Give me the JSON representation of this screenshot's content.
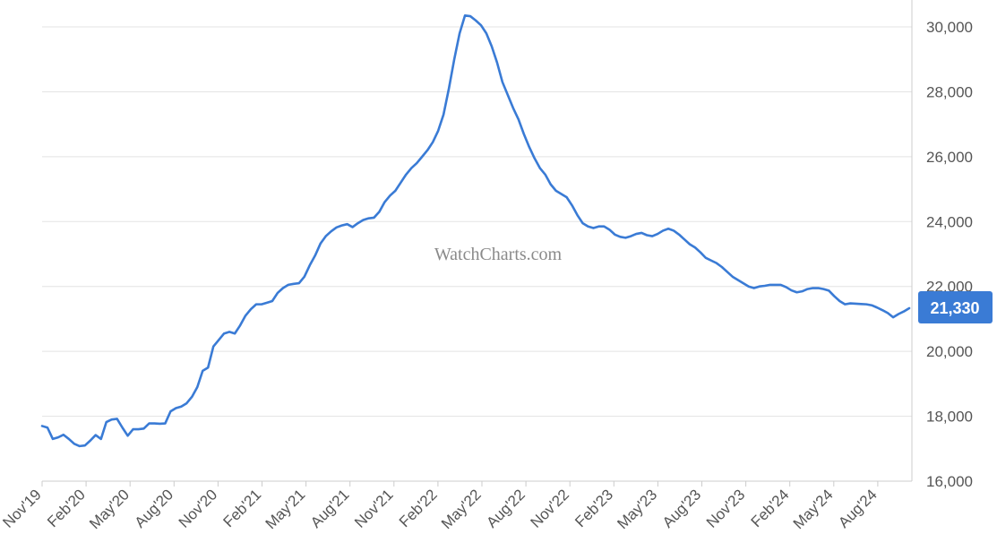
{
  "watermark": "WatchCharts.com",
  "chart_data": {
    "type": "line",
    "x_ticks": [
      "Nov'19",
      "Feb'20",
      "May'20",
      "Aug'20",
      "Nov'20",
      "Feb'21",
      "May'21",
      "Aug'21",
      "Nov'21",
      "Feb'22",
      "May'22",
      "Aug'22",
      "Nov'22",
      "Feb'23",
      "May'23",
      "Aug'23",
      "Nov'23",
      "Feb'24",
      "May'24",
      "Aug'24"
    ],
    "y_ticks": [
      "16,000",
      "18,000",
      "20,000",
      "22,000",
      "24,000",
      "26,000",
      "28,000",
      "30,000"
    ],
    "ylim": [
      16000,
      30000
    ],
    "grid": true,
    "last_value_label": "21,330",
    "colors": {
      "line": "#3a7bd5",
      "label_bg": "#3a7bd5",
      "grid": "#e3e3e3",
      "axis": "#cccccc"
    },
    "series": [
      {
        "values": [
          17700,
          17650,
          17300,
          17350,
          17430,
          17300,
          17150,
          17080,
          17100,
          17250,
          17420,
          17300,
          17820,
          17900,
          17920,
          17650,
          17400,
          17600,
          17600,
          17620,
          17780,
          17780,
          17770,
          17780,
          18150,
          18250,
          18300,
          18400,
          18600,
          18900,
          19400,
          19500,
          20150,
          20350,
          20550,
          20600,
          20550,
          20800,
          21100,
          21300,
          21450,
          21450,
          21500,
          21550,
          21800,
          21950,
          22050,
          22080,
          22100,
          22300,
          22650,
          22950,
          23320,
          23550,
          23700,
          23820,
          23880,
          23920,
          23830,
          23950,
          24050,
          24100,
          24120,
          24300,
          24600,
          24800,
          24950,
          25200,
          25450,
          25650,
          25800,
          26000,
          26200,
          26450,
          26800,
          27300,
          28100,
          29000,
          29800,
          30350,
          30330,
          30200,
          30050,
          29800,
          29400,
          28900,
          28300,
          27900,
          27500,
          27150,
          26700,
          26300,
          25950,
          25650,
          25450,
          25150,
          24950,
          24850,
          24750,
          24500,
          24200,
          23950,
          23850,
          23800,
          23850,
          23850,
          23750,
          23600,
          23530,
          23500,
          23550,
          23620,
          23650,
          23580,
          23550,
          23620,
          23720,
          23780,
          23720,
          23600,
          23450,
          23300,
          23200,
          23050,
          22880,
          22800,
          22720,
          22600,
          22450,
          22300,
          22200,
          22100,
          22000,
          21950,
          22000,
          22020,
          22050,
          22050,
          22050,
          21980,
          21880,
          21820,
          21850,
          21920,
          21950,
          21950,
          21920,
          21870,
          21700,
          21550,
          21450,
          21480,
          21470,
          21460,
          21450,
          21420,
          21350,
          21270,
          21180,
          21050,
          21150,
          21230,
          21330
        ]
      }
    ]
  }
}
